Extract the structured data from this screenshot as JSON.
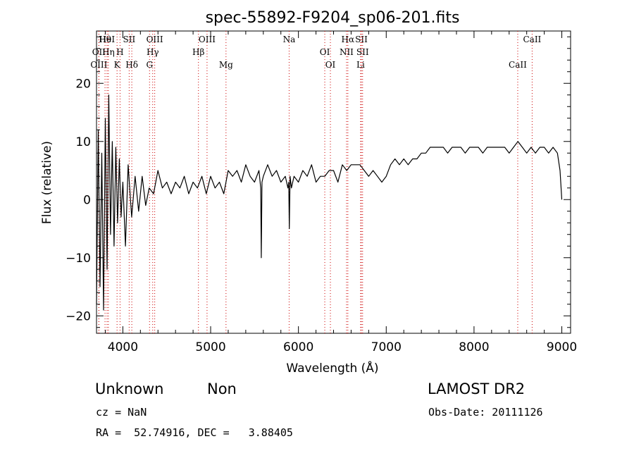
{
  "chart_data": {
    "type": "line",
    "title": "spec-55892-F9204_sp06-201.fits",
    "xlabel": "Wavelength (Å)",
    "ylabel": "Flux (relative)",
    "xlim": [
      3700,
      9100
    ],
    "ylim": [
      -23,
      29
    ],
    "xticks": [
      4000,
      5000,
      6000,
      7000,
      8000,
      9000
    ],
    "yticks": [
      -20,
      -10,
      0,
      10,
      20
    ],
    "line_color": "#000000",
    "marker_color": "#cc0000",
    "series": [
      {
        "x": [
          3700,
          3720,
          3740,
          3760,
          3780,
          3800,
          3820,
          3840,
          3860,
          3880,
          3900,
          3920,
          3940,
          3960,
          3980,
          4000,
          4030,
          4060,
          4100,
          4140,
          4180,
          4220,
          4260,
          4300,
          4350,
          4400,
          4450,
          4500,
          4550,
          4600,
          4650,
          4700,
          4750,
          4800,
          4850,
          4900,
          4950,
          5000,
          5050,
          5100,
          5150,
          5200,
          5250,
          5300,
          5350,
          5400,
          5450,
          5500,
          5550,
          5570,
          5577,
          5585,
          5600,
          5650,
          5700,
          5750,
          5800,
          5850,
          5880,
          5890,
          5896,
          5905,
          5920,
          5950,
          6000,
          6050,
          6100,
          6150,
          6200,
          6250,
          6300,
          6350,
          6400,
          6450,
          6500,
          6550,
          6600,
          6650,
          6700,
          6750,
          6800,
          6850,
          6900,
          6950,
          7000,
          7050,
          7100,
          7150,
          7200,
          7250,
          7300,
          7350,
          7400,
          7450,
          7500,
          7550,
          7600,
          7650,
          7700,
          7750,
          7800,
          7850,
          7900,
          7950,
          8000,
          8050,
          8100,
          8150,
          8200,
          8250,
          8300,
          8350,
          8400,
          8450,
          8500,
          8550,
          8600,
          8650,
          8700,
          8750,
          8800,
          8850,
          8900,
          8950,
          8980,
          9000
        ],
        "y": [
          -18,
          12,
          -15,
          8,
          -19,
          14,
          -12,
          18,
          -6,
          10,
          -8,
          9,
          -4,
          7,
          -3,
          3,
          -8,
          6,
          -3,
          4,
          -2,
          4,
          -1,
          2,
          1,
          5,
          2,
          3,
          1,
          3,
          2,
          4,
          1,
          3,
          2,
          4,
          1,
          4,
          2,
          3,
          1,
          5,
          4,
          5,
          3,
          6,
          4,
          3,
          5,
          2,
          -10,
          3,
          4,
          6,
          4,
          5,
          3,
          4,
          2,
          3,
          -5,
          4,
          2,
          4,
          3,
          5,
          4,
          6,
          3,
          4,
          4,
          5,
          5,
          3,
          6,
          5,
          6,
          6,
          6,
          5,
          4,
          5,
          4,
          3,
          4,
          6,
          7,
          6,
          7,
          6,
          7,
          7,
          8,
          8,
          9,
          9,
          9,
          9,
          8,
          9,
          9,
          9,
          8,
          9,
          9,
          9,
          8,
          9,
          9,
          9,
          9,
          9,
          8,
          9,
          10,
          9,
          8,
          9,
          8,
          9,
          9,
          8,
          9,
          8,
          5,
          0
        ]
      }
    ],
    "spectral_lines": [
      {
        "label": "Hθ",
        "wavelength": 3797
      },
      {
        "label": "OII",
        "wavelength": 3727
      },
      {
        "label": "OIII",
        "wavelength": 3727
      },
      {
        "label": "HeI",
        "wavelength": 3820
      },
      {
        "label": "Hη",
        "wavelength": 3835
      },
      {
        "label": "K",
        "wavelength": 3934
      },
      {
        "label": "SII",
        "wavelength": 4072
      },
      {
        "label": "H",
        "wavelength": 3968
      },
      {
        "label": "Hδ",
        "wavelength": 4102
      },
      {
        "label": "OIII",
        "wavelength": 4363
      },
      {
        "label": "Hγ",
        "wavelength": 4340
      },
      {
        "label": "G",
        "wavelength": 4304
      },
      {
        "label": "OIII",
        "wavelength": 4959
      },
      {
        "label": "Hβ",
        "wavelength": 4861
      },
      {
        "label": "Mg",
        "wavelength": 5175
      },
      {
        "label": "Na",
        "wavelength": 5894
      },
      {
        "label": "OI",
        "wavelength": 6300
      },
      {
        "label": "OI",
        "wavelength": 6364
      },
      {
        "label": "Hα",
        "wavelength": 6563
      },
      {
        "label": "NII",
        "wavelength": 6548
      },
      {
        "label": "Li",
        "wavelength": 6708
      },
      {
        "label": "SII",
        "wavelength": 6717
      },
      {
        "label": "SII",
        "wavelength": 6731
      },
      {
        "label": "CaII",
        "wavelength": 8498
      },
      {
        "label": "CaII",
        "wavelength": 8662
      }
    ]
  },
  "info": {
    "class": "Unknown",
    "subclass": "Non",
    "survey": "LAMOST DR2",
    "cz": "cz = NaN",
    "obs_date": "Obs-Date: 20111126",
    "coords": "RA =  52.74916, DEC =   3.88405"
  }
}
